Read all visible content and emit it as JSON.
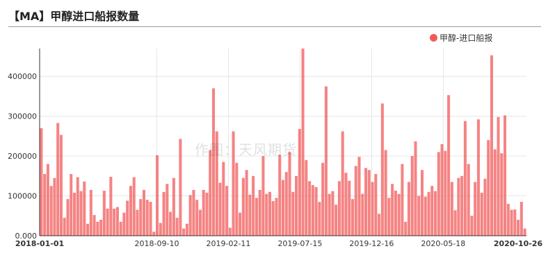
{
  "title": "【MA】甲醇进口船报数量",
  "watermark": "作图：天风期货",
  "chart_data": {
    "type": "bar",
    "series": [
      {
        "name": "甲醇-进口船报",
        "color": "#f25a5a"
      }
    ],
    "ylim": [
      0,
      470000
    ],
    "yticks": [
      "0.000",
      "100000",
      "200000",
      "300000",
      "400000"
    ],
    "xticks": [
      "2018-01-01",
      "2018-09-10",
      "2019-02-11",
      "2019-07-15",
      "2019-12-16",
      "2020-05-18",
      "2020-10-26"
    ],
    "x_start": "2018-01-01",
    "x_end": "2020-10-26",
    "values": [
      270000,
      155000,
      180000,
      125000,
      145000,
      283000,
      253000,
      45000,
      92000,
      155000,
      108000,
      147000,
      112000,
      136000,
      30000,
      115000,
      52000,
      35000,
      40000,
      113000,
      68000,
      148000,
      68000,
      72000,
      35000,
      58000,
      88000,
      125000,
      147000,
      65000,
      92000,
      115000,
      90000,
      85000,
      10000,
      202000,
      32000,
      110000,
      130000,
      60000,
      145000,
      45000,
      243000,
      18000,
      30000,
      102000,
      115000,
      90000,
      65000,
      115000,
      108000,
      215000,
      370000,
      262000,
      133000,
      185000,
      125000,
      20000,
      262000,
      183000,
      58000,
      145000,
      165000,
      103000,
      150000,
      95000,
      115000,
      200000,
      105000,
      110000,
      87000,
      95000,
      203000,
      140000,
      160000,
      210000,
      110000,
      150000,
      268000,
      470000,
      190000,
      137000,
      127000,
      122000,
      85000,
      183000,
      375000,
      105000,
      112000,
      78000,
      137000,
      262000,
      158000,
      138000,
      92000,
      175000,
      198000,
      105000,
      170000,
      165000,
      135000,
      155000,
      55000,
      332000,
      215000,
      95000,
      130000,
      113000,
      105000,
      180000,
      35000,
      135000,
      200000,
      237000,
      100000,
      165000,
      98000,
      110000,
      125000,
      112000,
      210000,
      230000,
      213000,
      353000,
      135000,
      64000,
      145000,
      150000,
      288000,
      180000,
      50000,
      135000,
      292000,
      108000,
      143000,
      240000,
      453000,
      217000,
      298000,
      207000,
      302000,
      80000,
      65000,
      66000,
      40000,
      85000,
      18000
    ]
  }
}
